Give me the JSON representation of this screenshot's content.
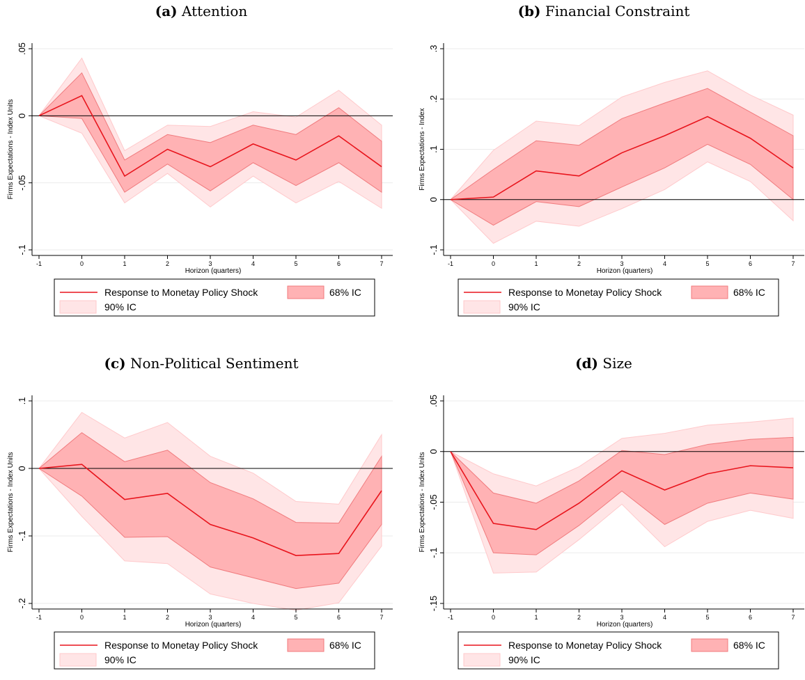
{
  "chart_data": [
    {
      "type": "line",
      "label": "(a)",
      "title": "Attention",
      "xlabel": "Horizon (quarters)",
      "ylabel": "Firms Expectations - Index Units",
      "xlim": [
        -1,
        7
      ],
      "ylim": [
        -0.1,
        0.05
      ],
      "yticks": [
        0.05,
        0,
        -0.05,
        -0.1
      ],
      "ytick_labels": [
        ".05",
        "0",
        "-.05",
        "-.1"
      ],
      "x": [
        -1,
        0,
        1,
        2,
        3,
        4,
        5,
        6,
        7
      ],
      "xtick_labels": [
        "-1",
        "0",
        "1",
        "2",
        "3",
        "4",
        "5",
        "6",
        "7"
      ],
      "series": [
        {
          "name": "Response to Monetay Policy Shock",
          "kind": "line",
          "values": [
            0,
            0.015,
            -0.045,
            -0.025,
            -0.038,
            -0.021,
            -0.033,
            -0.015,
            -0.038
          ]
        },
        {
          "name": "68% IC",
          "kind": "band",
          "lower": [
            0,
            -0.002,
            -0.057,
            -0.036,
            -0.056,
            -0.035,
            -0.052,
            -0.035,
            -0.057
          ],
          "upper": [
            0,
            0.032,
            -0.033,
            -0.014,
            -0.02,
            -0.007,
            -0.014,
            0.006,
            -0.019
          ]
        },
        {
          "name": "90% IC",
          "kind": "band",
          "lower": [
            0,
            -0.013,
            -0.065,
            -0.043,
            -0.068,
            -0.045,
            -0.065,
            -0.049,
            -0.069
          ],
          "upper": [
            0,
            0.043,
            -0.026,
            -0.007,
            -0.008,
            0.003,
            -0.001,
            0.019,
            -0.007
          ]
        }
      ],
      "grid": true,
      "legend": "bottom"
    },
    {
      "type": "line",
      "label": "(b)",
      "title": "Financial Constraint",
      "xlabel": "Horizon (quarters)",
      "ylabel": "Firms Expectations - Index",
      "xlim": [
        -1,
        7
      ],
      "ylim": [
        -0.1,
        0.3
      ],
      "yticks": [
        0.3,
        0.2,
        0.1,
        0,
        -0.1
      ],
      "ytick_labels": [
        ".3",
        ".2",
        ".1",
        "0",
        "-.1"
      ],
      "x": [
        -1,
        0,
        1,
        2,
        3,
        4,
        5,
        6,
        7
      ],
      "xtick_labels": [
        "-1",
        "0",
        "1",
        "2",
        "3",
        "4",
        "5",
        "6",
        "7"
      ],
      "series": [
        {
          "name": "Response to Monetay Policy Shock",
          "kind": "line",
          "values": [
            0,
            0.005,
            0.057,
            0.047,
            0.093,
            0.127,
            0.165,
            0.122,
            0.063
          ]
        },
        {
          "name": "68% IC",
          "kind": "band",
          "lower": [
            0,
            -0.051,
            -0.004,
            -0.014,
            0.025,
            0.063,
            0.11,
            0.07,
            0.0
          ],
          "upper": [
            0,
            0.06,
            0.117,
            0.108,
            0.161,
            0.192,
            0.221,
            0.174,
            0.127
          ]
        },
        {
          "name": "90% IC",
          "kind": "band",
          "lower": [
            0,
            -0.087,
            -0.043,
            -0.053,
            -0.018,
            0.02,
            0.075,
            0.036,
            -0.042
          ],
          "upper": [
            0,
            0.098,
            0.156,
            0.147,
            0.204,
            0.233,
            0.256,
            0.208,
            0.168
          ]
        }
      ],
      "grid": true,
      "legend": "bottom"
    },
    {
      "type": "line",
      "label": "(c)",
      "title": "Non-Political Sentiment",
      "xlabel": "Horizon (quarters)",
      "ylabel": "Firms Expectations - Index Units",
      "xlim": [
        -1,
        7
      ],
      "ylim": [
        -0.2,
        0.1
      ],
      "yticks": [
        0.1,
        0,
        -0.1,
        -0.2
      ],
      "ytick_labels": [
        ".1",
        "0",
        "-.1",
        "-.2"
      ],
      "x": [
        -1,
        0,
        1,
        2,
        3,
        4,
        5,
        6,
        7
      ],
      "xtick_labels": [
        "-1",
        "0",
        "1",
        "2",
        "3",
        "4",
        "5",
        "6",
        "7"
      ],
      "series": [
        {
          "name": "Response to Monetay Policy Shock",
          "kind": "line",
          "values": [
            0,
            0.006,
            -0.046,
            -0.037,
            -0.083,
            -0.103,
            -0.129,
            -0.126,
            -0.033
          ]
        },
        {
          "name": "68% IC",
          "kind": "band",
          "lower": [
            0,
            -0.041,
            -0.102,
            -0.101,
            -0.146,
            -0.162,
            -0.178,
            -0.17,
            -0.083
          ],
          "upper": [
            0,
            0.053,
            0.01,
            0.027,
            -0.021,
            -0.045,
            -0.08,
            -0.081,
            0.018
          ]
        },
        {
          "name": "90% IC",
          "kind": "band",
          "lower": [
            0,
            -0.071,
            -0.137,
            -0.141,
            -0.186,
            -0.2,
            -0.21,
            -0.199,
            -0.115
          ],
          "upper": [
            0,
            0.083,
            0.045,
            0.068,
            0.018,
            -0.007,
            -0.049,
            -0.053,
            0.05
          ]
        }
      ],
      "grid": true,
      "legend": "bottom"
    },
    {
      "type": "line",
      "label": "(d)",
      "title": "Size",
      "xlabel": "Horizon (quarters)",
      "ylabel": "Firms Expectations - Index Units",
      "xlim": [
        -1,
        7
      ],
      "ylim": [
        -0.15,
        0.05
      ],
      "yticks": [
        0.05,
        0,
        -0.05,
        -0.1,
        -0.15
      ],
      "ytick_labels": [
        ".05",
        "0",
        "-.05",
        "-.1",
        "-.15"
      ],
      "x": [
        -1,
        0,
        1,
        2,
        3,
        4,
        5,
        6,
        7
      ],
      "xtick_labels": [
        "-1",
        "0",
        "1",
        "2",
        "3",
        "4",
        "5",
        "6",
        "7"
      ],
      "series": [
        {
          "name": "Response to Monetay Policy Shock",
          "kind": "line",
          "values": [
            0,
            -0.071,
            -0.077,
            -0.051,
            -0.019,
            -0.038,
            -0.022,
            -0.014,
            -0.016
          ]
        },
        {
          "name": "68% IC",
          "kind": "band",
          "lower": [
            0,
            -0.1,
            -0.102,
            -0.073,
            -0.039,
            -0.072,
            -0.051,
            -0.041,
            -0.047
          ],
          "upper": [
            0,
            -0.041,
            -0.051,
            -0.029,
            0.001,
            -0.003,
            0.007,
            0.012,
            0.014
          ]
        },
        {
          "name": "90% IC",
          "kind": "band",
          "lower": [
            0,
            -0.12,
            -0.119,
            -0.087,
            -0.052,
            -0.094,
            -0.069,
            -0.058,
            -0.066
          ],
          "upper": [
            0,
            -0.022,
            -0.034,
            -0.015,
            0.013,
            0.018,
            0.026,
            0.029,
            0.033
          ]
        }
      ],
      "grid": true,
      "legend": "bottom"
    }
  ],
  "legend": {
    "line_label": "Response to Monetay Policy Shock",
    "band68_label": "68% IC",
    "band90_label": "90% IC"
  },
  "colors": {
    "line": "#e8141c",
    "band68": "#ffb2b4",
    "band68_edge": "#f07a7d",
    "band90": "#ffe5e6",
    "band90_edge": "#ffc9cb",
    "zero_line": "#000000",
    "grid": "#ebebeb"
  }
}
